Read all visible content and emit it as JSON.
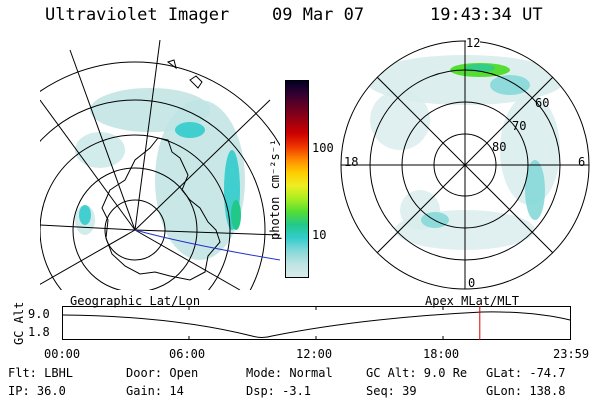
{
  "header": {
    "title": "Ultraviolet Imager",
    "date": "09 Mar 07",
    "time": "19:43:34 UT"
  },
  "colorbar": {
    "unit_label": "photon cm⁻²s⁻¹",
    "ticks": [
      "100",
      "10"
    ],
    "colors": [
      "#d8ecec",
      "#bfe3e3",
      "#86d8d8",
      "#33cccc",
      "#22c88a",
      "#55dd33",
      "#aaee22",
      "#eeee22",
      "#ffcc00",
      "#ff8800",
      "#ee3300",
      "#cc0000",
      "#990011",
      "#660022",
      "#330033",
      "#000022"
    ]
  },
  "left_map": {
    "name": "Geographic Lat/Lon"
  },
  "right_map": {
    "name": "Apex  MLat/MLT",
    "mlt_labels": {
      "top": "12",
      "left": "18",
      "right": "6",
      "bottom": "0"
    },
    "lat_labels": [
      "60",
      "70",
      "80"
    ]
  },
  "altitude_plot": {
    "ylabel": "GC Alt",
    "yticks": [
      "9.0",
      "1.8"
    ],
    "xticks": [
      "00:00",
      "06:00",
      "12:00",
      "18:00",
      "23:59"
    ],
    "cursor_time": "19:43"
  },
  "info": {
    "flt": "Flt: LBHL",
    "ip": "IP: 36.0",
    "door": "Door: Open",
    "gain": "Gain: 14",
    "mode": "Mode: Normal",
    "dsp": "Dsp:   -3.1",
    "gc_alt": "GC Alt: 9.0 Re",
    "seq": "Seq: 39",
    "glat": "GLat: -74.7",
    "glon": "GLon: 138.8"
  }
}
